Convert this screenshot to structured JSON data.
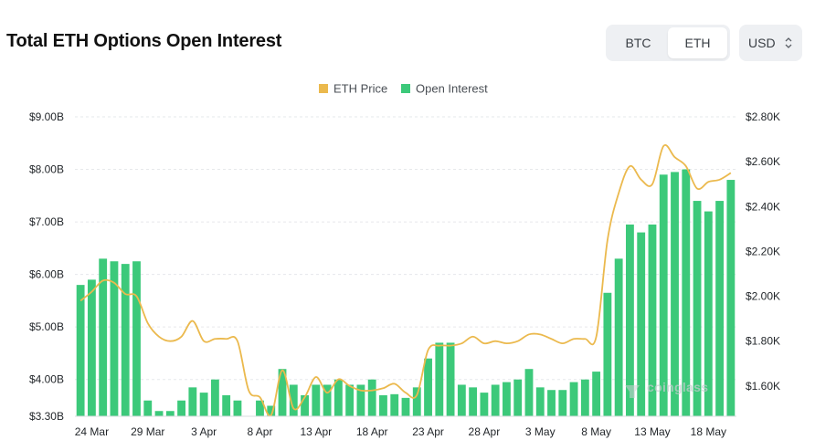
{
  "header": {
    "title": "Total ETH Options Open Interest",
    "asset_tabs": [
      {
        "label": "BTC",
        "active": false
      },
      {
        "label": "ETH",
        "active": true
      }
    ],
    "currency": "USD"
  },
  "watermark": "coinglass",
  "colors": {
    "price": "#ebb94d",
    "open_interest": "#3cc97a",
    "grid": "#e6e8eb"
  },
  "chart_data": {
    "type": "bar",
    "title": "Total ETH Options Open Interest",
    "legend": {
      "position": "top-center",
      "entries": [
        "ETH Price",
        "Open Interest"
      ]
    },
    "grid": true,
    "left_axis": {
      "ticks": [
        "$9.00B",
        "$8.00B",
        "$7.00B",
        "$6.00B",
        "$5.00B",
        "$4.00B",
        "$3.30B"
      ],
      "min": 3.3,
      "max": 9.0
    },
    "right_axis": {
      "ticks": [
        "$2.80K",
        "$2.60K",
        "$2.40K",
        "$2.20K",
        "$2.00K",
        "$1.80K",
        "$1.60K"
      ],
      "min": 1.465,
      "max": 2.8
    },
    "x_tick_labels": [
      "24 Mar",
      "29 Mar",
      "3 Apr",
      "8 Apr",
      "13 Apr",
      "18 Apr",
      "23 Apr",
      "28 Apr",
      "3 May",
      "8 May",
      "13 May",
      "18 May"
    ],
    "x_tick_indices": [
      1,
      6,
      11,
      16,
      21,
      26,
      31,
      36,
      41,
      46,
      51,
      56
    ],
    "series": [
      {
        "name": "Open Interest",
        "type": "bar",
        "axis": "left",
        "values": [
          5.8,
          5.9,
          6.3,
          6.25,
          6.2,
          6.25,
          3.6,
          3.4,
          3.4,
          3.6,
          3.85,
          3.75,
          4.0,
          3.7,
          3.6,
          3.3,
          3.6,
          3.5,
          4.2,
          3.9,
          3.7,
          3.9,
          3.9,
          4.0,
          3.9,
          3.9,
          4.0,
          3.7,
          3.72,
          3.65,
          3.85,
          4.4,
          4.7,
          4.7,
          3.9,
          3.85,
          3.75,
          3.9,
          3.95,
          4.0,
          4.2,
          3.85,
          3.8,
          3.8,
          3.95,
          4.0,
          4.15,
          5.65,
          6.3,
          6.95,
          6.8,
          6.95,
          7.9,
          7.95,
          8.0,
          7.4,
          7.2,
          7.4,
          7.8
        ]
      },
      {
        "name": "ETH Price",
        "type": "line",
        "axis": "right",
        "values": [
          1.98,
          2.02,
          2.07,
          2.06,
          2.01,
          2.0,
          1.88,
          1.82,
          1.8,
          1.82,
          1.89,
          1.8,
          1.81,
          1.81,
          1.8,
          1.58,
          1.55,
          1.47,
          1.67,
          1.5,
          1.55,
          1.64,
          1.57,
          1.63,
          1.6,
          1.58,
          1.58,
          1.59,
          1.61,
          1.57,
          1.56,
          1.76,
          1.78,
          1.78,
          1.79,
          1.82,
          1.79,
          1.8,
          1.79,
          1.8,
          1.83,
          1.83,
          1.81,
          1.79,
          1.81,
          1.81,
          1.82,
          2.25,
          2.46,
          2.58,
          2.52,
          2.5,
          2.67,
          2.62,
          2.58,
          2.48,
          2.51,
          2.52,
          2.55
        ]
      }
    ]
  }
}
